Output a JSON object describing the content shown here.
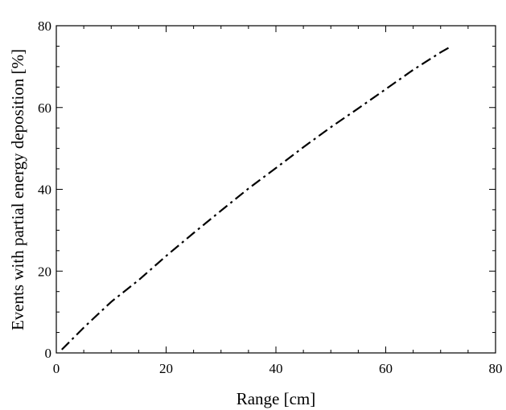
{
  "chart_data": {
    "type": "line",
    "title": "",
    "xlabel": "Range [cm]",
    "ylabel": "Events with partial energy deposition  [%]",
    "xlim": [
      0,
      80
    ],
    "ylim": [
      0,
      80
    ],
    "xticks": [
      0,
      20,
      40,
      60,
      80
    ],
    "yticks": [
      0,
      20,
      40,
      60,
      80
    ],
    "grid": false,
    "series": [
      {
        "line_style": "dash-dot",
        "color": "#000000",
        "x": [
          1,
          5,
          10,
          15,
          20,
          25,
          30,
          35,
          40,
          45,
          50,
          55,
          60,
          65,
          70,
          72
        ],
        "y": [
          0.8,
          6.2,
          12.5,
          17.8,
          23.7,
          29.3,
          34.8,
          40.2,
          45.2,
          50.3,
          55.2,
          59.8,
          64.5,
          69.2,
          73.5,
          75
        ]
      }
    ]
  }
}
